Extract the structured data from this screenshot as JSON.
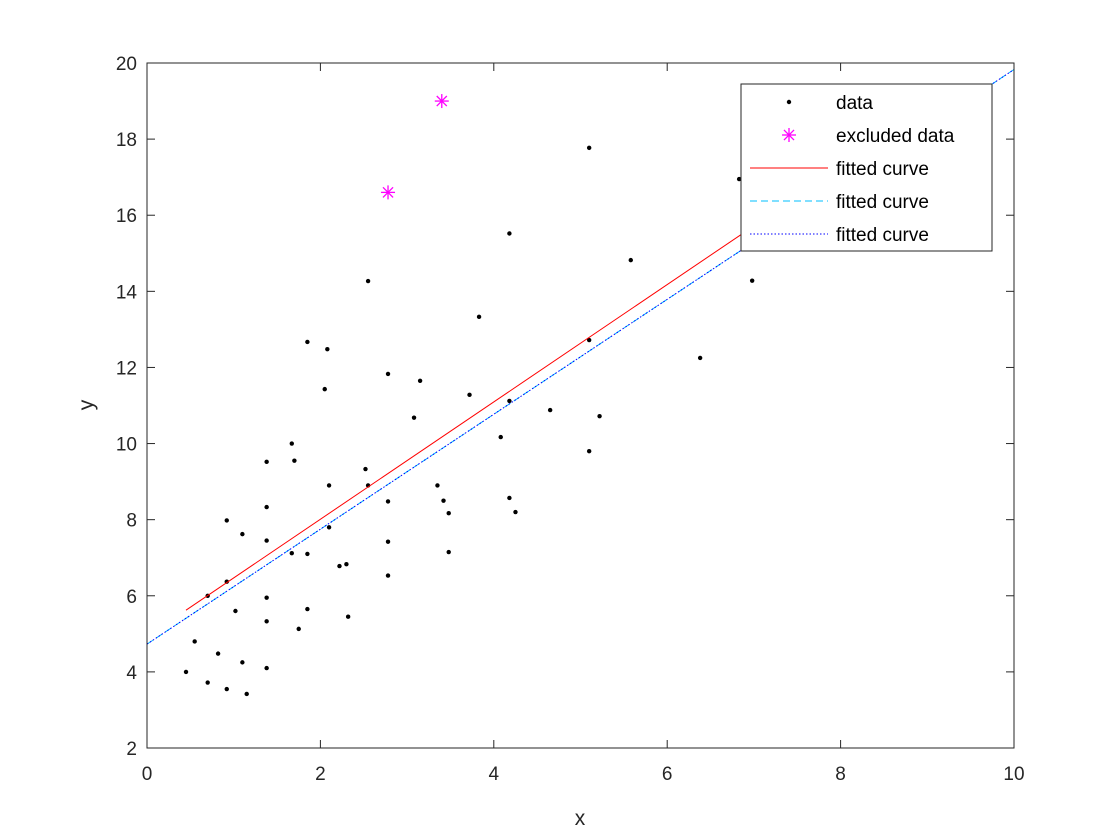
{
  "chart_data": {
    "type": "scatter",
    "title": "",
    "xlabel": "x",
    "ylabel": "y",
    "xlim": [
      0,
      10
    ],
    "ylim": [
      2,
      20
    ],
    "x_ticks": [
      "0",
      "2",
      "4",
      "6",
      "8",
      "10"
    ],
    "y_ticks": [
      "2",
      "4",
      "6",
      "8",
      "10",
      "12",
      "14",
      "16",
      "18",
      "20"
    ],
    "grid": false,
    "legend_position": "top-right",
    "legend": [
      "data",
      "excluded data",
      "fitted curve",
      "fitted curve",
      "fitted curve"
    ],
    "series": [
      {
        "name": "data",
        "kind": "points",
        "marker": "dot",
        "color": "#000000",
        "points": [
          [
            0.45,
            4.0
          ],
          [
            0.55,
            4.8
          ],
          [
            0.7,
            3.72
          ],
          [
            0.7,
            6.0
          ],
          [
            0.82,
            4.48
          ],
          [
            0.92,
            7.98
          ],
          [
            0.92,
            6.37
          ],
          [
            0.92,
            3.55
          ],
          [
            1.02,
            5.6
          ],
          [
            1.1,
            7.62
          ],
          [
            1.1,
            4.25
          ],
          [
            1.15,
            3.42
          ],
          [
            1.38,
            9.52
          ],
          [
            1.38,
            8.33
          ],
          [
            1.38,
            7.45
          ],
          [
            1.38,
            5.95
          ],
          [
            1.38,
            5.33
          ],
          [
            1.38,
            4.1
          ],
          [
            1.67,
            10.0
          ],
          [
            1.67,
            7.12
          ],
          [
            1.7,
            9.55
          ],
          [
            1.75,
            5.13
          ],
          [
            1.85,
            12.67
          ],
          [
            1.85,
            7.1
          ],
          [
            1.85,
            5.65
          ],
          [
            2.05,
            11.43
          ],
          [
            2.08,
            12.48
          ],
          [
            2.1,
            8.9
          ],
          [
            2.1,
            7.8
          ],
          [
            2.22,
            6.78
          ],
          [
            2.3,
            6.83
          ],
          [
            2.32,
            5.45
          ],
          [
            2.52,
            9.33
          ],
          [
            2.55,
            14.27
          ],
          [
            2.55,
            8.9
          ],
          [
            2.78,
            11.83
          ],
          [
            2.78,
            8.48
          ],
          [
            2.78,
            7.42
          ],
          [
            2.78,
            6.53
          ],
          [
            3.08,
            10.68
          ],
          [
            3.15,
            11.65
          ],
          [
            3.35,
            8.9
          ],
          [
            3.42,
            8.5
          ],
          [
            3.48,
            8.17
          ],
          [
            3.48,
            7.15
          ],
          [
            3.72,
            11.28
          ],
          [
            3.83,
            13.33
          ],
          [
            4.08,
            10.17
          ],
          [
            4.18,
            15.52
          ],
          [
            4.18,
            11.12
          ],
          [
            4.18,
            8.57
          ],
          [
            4.25,
            8.2
          ],
          [
            4.65,
            10.88
          ],
          [
            5.1,
            17.77
          ],
          [
            5.1,
            12.72
          ],
          [
            5.1,
            9.8
          ],
          [
            5.22,
            10.72
          ],
          [
            5.58,
            14.82
          ],
          [
            6.38,
            12.25
          ],
          [
            6.83,
            16.95
          ],
          [
            6.98,
            14.28
          ]
        ]
      },
      {
        "name": "excluded data",
        "kind": "points",
        "marker": "asterisk",
        "color": "#ff00ff",
        "points": [
          [
            2.78,
            16.6
          ],
          [
            3.4,
            19.0
          ]
        ]
      },
      {
        "name": "fitted curve",
        "kind": "line",
        "style": "solid",
        "color": "#ff0000",
        "points": [
          [
            0.45,
            5.62
          ],
          [
            7.0,
            15.72
          ]
        ]
      },
      {
        "name": "fitted curve",
        "kind": "line",
        "style": "dashed",
        "color": "#00bfff",
        "points": [
          [
            0.0,
            4.73
          ],
          [
            10.0,
            19.83
          ]
        ]
      },
      {
        "name": "fitted curve",
        "kind": "line",
        "style": "dotted",
        "color": "#0000ff",
        "points": [
          [
            0.0,
            4.73
          ],
          [
            10.0,
            19.83
          ]
        ]
      }
    ]
  }
}
